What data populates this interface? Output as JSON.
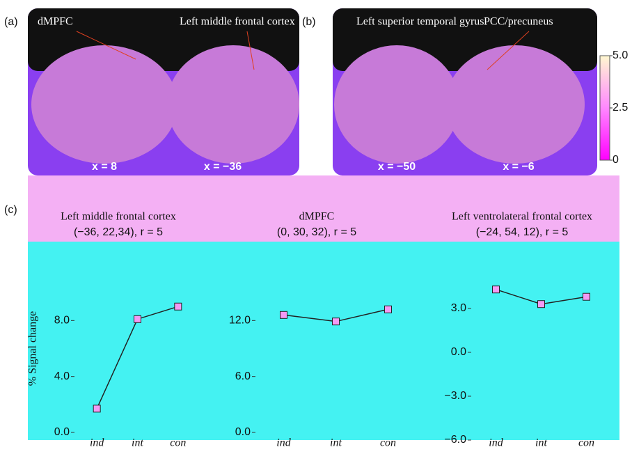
{
  "panels": {
    "a": "(a)",
    "b": "(b)",
    "c": "(c)"
  },
  "brain_a": {
    "labels": [
      "dMPFC",
      "Left middle frontal cortex"
    ],
    "slices": [
      "x = 8",
      "x = −36"
    ]
  },
  "brain_b": {
    "labels": [
      "Left superior temporal gyrus",
      "PCC/precuneus"
    ],
    "slices": [
      "x = −50",
      "x = −6"
    ]
  },
  "colorbar": {
    "ticks": [
      0,
      2.5,
      {
        "value": 5,
        "label": "5.0"
      }
    ]
  },
  "chart_data": [
    {
      "type": "line",
      "title": "Left middle frontal cortex",
      "subtitle": "(−36, 22,34), r = 5",
      "ylabel": "% Signal change",
      "categories": [
        "ind",
        "int",
        "con"
      ],
      "values": [
        1.7,
        8.1,
        9.0
      ],
      "color": "#222",
      "ylim": [
        0,
        12
      ],
      "yticks": [
        {
          "value": 0,
          "label": "0.0"
        },
        {
          "value": 4,
          "label": "4.0"
        },
        {
          "value": 8,
          "label": "8.0"
        }
      ]
    },
    {
      "type": "line",
      "title": "dMPFC",
      "subtitle": "(0, 30, 32), r = 5",
      "categories": [
        "ind",
        "int",
        "con"
      ],
      "values": [
        12.6,
        11.9,
        13.2
      ],
      "color": "#222",
      "ylim": [
        0,
        18
      ],
      "yticks": [
        {
          "value": 0,
          "label": "0.0"
        },
        {
          "value": 6,
          "label": "6.0"
        },
        {
          "value": 12,
          "label": "12.0"
        }
      ]
    },
    {
      "type": "line",
      "title": "Left ventrolateral frontal cortex",
      "subtitle": "(−24, 54, 12), r = 5",
      "categories": [
        "ind",
        "int",
        "con"
      ],
      "values": [
        4.3,
        3.3,
        3.8
      ],
      "color": "#222",
      "ylim": [
        -6,
        6
      ],
      "yticks": [
        {
          "value": -6,
          "label": "−6.0"
        },
        {
          "value": -3,
          "label": "−3.0"
        },
        {
          "value": 0,
          "label": "0.0"
        },
        {
          "value": 3,
          "label": "3.0"
        }
      ]
    }
  ]
}
